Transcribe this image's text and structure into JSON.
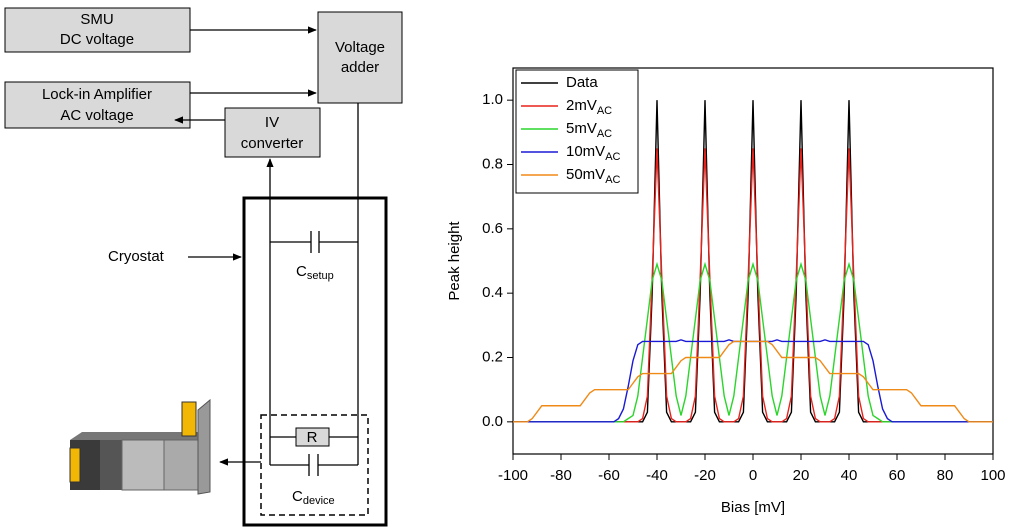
{
  "diagram": {
    "smu": {
      "line1": "SMU",
      "line2": "DC voltage"
    },
    "lockin": {
      "line1": "Lock-in Amplifier",
      "line2": "AC voltage"
    },
    "adder": {
      "line1": "Voltage",
      "line2": "adder"
    },
    "converter": {
      "line1": "IV",
      "line2": "converter"
    },
    "cryostat": "Cryostat",
    "c_setup": {
      "main": "C",
      "sub": "setup"
    },
    "resistor": "R",
    "c_device": {
      "main": "C",
      "sub": "device"
    }
  },
  "chart_data": {
    "type": "line",
    "xlabel": "Bias [mV]",
    "ylabel": "Peak height",
    "xlim": [
      -100,
      100
    ],
    "ylim": [
      -0.1,
      1.1
    ],
    "xticks": [
      -100,
      -80,
      -60,
      -40,
      -20,
      0,
      20,
      40,
      60,
      80,
      100
    ],
    "yticks": [
      {
        "value": 0,
        "label": "0.0"
      },
      {
        "value": 0.2,
        "label": "0.2"
      },
      {
        "value": 0.4,
        "label": "0.4"
      },
      {
        "value": 0.6,
        "label": "0.6"
      },
      {
        "value": 0.8,
        "label": "0.8"
      },
      {
        "value": 1,
        "label": "1.0"
      }
    ],
    "legend": "upper left",
    "x": [
      -100,
      -98,
      -96,
      -94,
      -92,
      -90,
      -88,
      -86,
      -84,
      -82,
      -80,
      -78,
      -76,
      -74,
      -72,
      -70,
      -68,
      -66,
      -64,
      -62,
      -60,
      -58,
      -56,
      -54,
      -52,
      -50,
      -48,
      -46,
      -44,
      -42,
      -40,
      -38,
      -36,
      -34,
      -32,
      -30,
      -28,
      -26,
      -24,
      -22,
      -20,
      -18,
      -16,
      -14,
      -12,
      -10,
      -8,
      -6,
      -4,
      -2,
      0,
      2,
      4,
      6,
      8,
      10,
      12,
      14,
      16,
      18,
      20,
      22,
      24,
      26,
      28,
      30,
      32,
      34,
      36,
      38,
      40,
      42,
      44,
      46,
      48,
      50,
      52,
      54,
      56,
      58,
      60,
      62,
      64,
      66,
      68,
      70,
      72,
      74,
      76,
      78,
      80,
      82,
      84,
      86,
      88,
      90,
      92,
      94,
      96,
      98,
      100
    ],
    "series": [
      {
        "name": "Data",
        "color": "#000000",
        "values": [
          0,
          0,
          0,
          0,
          0,
          0,
          0,
          0,
          0,
          0,
          0,
          0,
          0,
          0,
          0,
          0,
          0,
          0,
          0,
          0,
          0,
          0,
          0,
          0,
          0,
          0,
          0,
          0,
          0.03,
          0.4,
          1,
          0.4,
          0.03,
          0,
          0,
          0,
          0,
          0,
          0.03,
          0.4,
          1,
          0.4,
          0.03,
          0,
          0,
          0,
          0,
          0,
          0.03,
          0.4,
          1,
          0.4,
          0.03,
          0,
          0,
          0,
          0,
          0,
          0.03,
          0.4,
          1,
          0.4,
          0.03,
          0,
          0,
          0,
          0,
          0,
          0.03,
          0.4,
          1,
          0.4,
          0.03,
          0,
          0,
          0,
          0,
          0,
          0,
          0,
          0,
          0,
          0,
          0,
          0,
          0,
          0,
          0,
          0,
          0,
          0,
          0,
          0,
          0,
          0,
          0,
          0,
          0,
          0,
          0,
          0
        ]
      },
      {
        "name": "2mV",
        "name_sub": "AC",
        "color": "#e8221b",
        "values": [
          0,
          0,
          0,
          0,
          0,
          0,
          0,
          0,
          0,
          0,
          0,
          0,
          0,
          0,
          0,
          0,
          0,
          0,
          0,
          0,
          0,
          0,
          0,
          0,
          0,
          0,
          0,
          0.01,
          0.08,
          0.45,
          0.85,
          0.45,
          0.08,
          0.01,
          0,
          0,
          0,
          0.01,
          0.08,
          0.45,
          0.85,
          0.45,
          0.08,
          0.01,
          0,
          0,
          0,
          0.01,
          0.08,
          0.45,
          0.85,
          0.45,
          0.08,
          0.01,
          0,
          0,
          0,
          0.01,
          0.08,
          0.45,
          0.85,
          0.45,
          0.08,
          0.01,
          0,
          0,
          0,
          0.01,
          0.08,
          0.45,
          0.85,
          0.45,
          0.08,
          0.01,
          0,
          0,
          0,
          0,
          0,
          0,
          0,
          0,
          0,
          0,
          0,
          0,
          0,
          0,
          0,
          0,
          0,
          0,
          0,
          0,
          0,
          0,
          0,
          0,
          0,
          0,
          0
        ]
      },
      {
        "name": "5mV",
        "name_sub": "AC",
        "color": "#2bd52b",
        "values": [
          0,
          0,
          0,
          0,
          0,
          0,
          0,
          0,
          0,
          0,
          0,
          0,
          0,
          0,
          0,
          0,
          0,
          0,
          0,
          0,
          0,
          0,
          0,
          0,
          0.01,
          0.02,
          0.08,
          0.2,
          0.32,
          0.44,
          0.49,
          0.44,
          0.32,
          0.2,
          0.08,
          0.02,
          0.08,
          0.2,
          0.32,
          0.44,
          0.49,
          0.44,
          0.32,
          0.2,
          0.08,
          0.02,
          0.08,
          0.2,
          0.32,
          0.44,
          0.49,
          0.44,
          0.32,
          0.2,
          0.08,
          0.02,
          0.08,
          0.2,
          0.32,
          0.44,
          0.49,
          0.44,
          0.32,
          0.2,
          0.08,
          0.02,
          0.08,
          0.2,
          0.32,
          0.44,
          0.49,
          0.44,
          0.32,
          0.2,
          0.08,
          0.02,
          0.01,
          0,
          0,
          0,
          0,
          0,
          0,
          0,
          0,
          0,
          0,
          0,
          0,
          0,
          0,
          0,
          0,
          0,
          0,
          0,
          0,
          0,
          0,
          0,
          0
        ]
      },
      {
        "name": "10mV",
        "name_sub": "AC",
        "color": "#1a1ad6",
        "values": [
          0,
          0,
          0,
          0,
          0,
          0,
          0,
          0,
          0,
          0,
          0,
          0,
          0,
          0,
          0,
          0,
          0,
          0,
          0,
          0,
          0,
          0,
          0.01,
          0.04,
          0.11,
          0.19,
          0.24,
          0.25,
          0.25,
          0.25,
          0.25,
          0.25,
          0.25,
          0.25,
          0.25,
          0.255,
          0.25,
          0.25,
          0.25,
          0.25,
          0.25,
          0.25,
          0.25,
          0.25,
          0.25,
          0.255,
          0.25,
          0.25,
          0.25,
          0.25,
          0.25,
          0.25,
          0.25,
          0.25,
          0.25,
          0.255,
          0.25,
          0.25,
          0.25,
          0.25,
          0.25,
          0.25,
          0.25,
          0.25,
          0.25,
          0.255,
          0.25,
          0.25,
          0.25,
          0.25,
          0.25,
          0.25,
          0.25,
          0.25,
          0.24,
          0.19,
          0.11,
          0.04,
          0.01,
          0,
          0,
          0,
          0,
          0,
          0,
          0,
          0,
          0,
          0,
          0,
          0,
          0,
          0,
          0,
          0,
          0,
          0,
          0,
          0,
          0,
          0
        ]
      },
      {
        "name": "50mV",
        "name_sub": "AC",
        "color": "#f08a17",
        "values": [
          0,
          0,
          0,
          0,
          0.01,
          0.03,
          0.05,
          0.05,
          0.05,
          0.05,
          0.05,
          0.05,
          0.05,
          0.05,
          0.05,
          0.07,
          0.09,
          0.1,
          0.1,
          0.1,
          0.1,
          0.1,
          0.1,
          0.1,
          0.1,
          0.12,
          0.14,
          0.15,
          0.15,
          0.15,
          0.15,
          0.15,
          0.15,
          0.15,
          0.17,
          0.19,
          0.2,
          0.2,
          0.2,
          0.2,
          0.2,
          0.2,
          0.2,
          0.2,
          0.22,
          0.24,
          0.25,
          0.25,
          0.25,
          0.25,
          0.25,
          0.25,
          0.25,
          0.25,
          0.24,
          0.22,
          0.2,
          0.2,
          0.2,
          0.2,
          0.2,
          0.2,
          0.2,
          0.2,
          0.19,
          0.17,
          0.15,
          0.15,
          0.15,
          0.15,
          0.15,
          0.15,
          0.15,
          0.14,
          0.12,
          0.1,
          0.1,
          0.1,
          0.1,
          0.1,
          0.1,
          0.1,
          0.1,
          0.09,
          0.07,
          0.05,
          0.05,
          0.05,
          0.05,
          0.05,
          0.05,
          0.05,
          0.05,
          0.03,
          0.01,
          0,
          0,
          0,
          0,
          0,
          0
        ]
      }
    ]
  }
}
